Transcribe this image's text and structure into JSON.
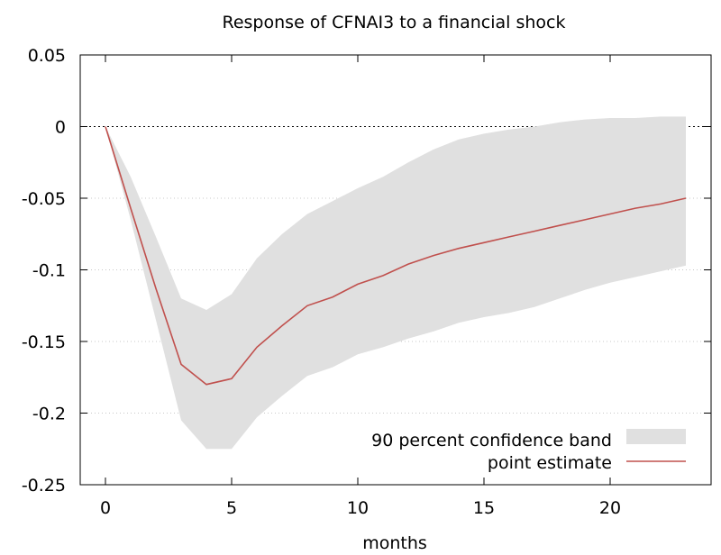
{
  "chart_data": {
    "type": "line",
    "title": "Response of CFNAI3 to a financial shock",
    "xlabel": "months",
    "ylabel": "",
    "xlim": [
      -1,
      24
    ],
    "ylim": [
      -0.25,
      0.05
    ],
    "x_ticks": [
      0,
      5,
      10,
      15,
      20
    ],
    "x_tick_labels": [
      "0",
      "5",
      "10",
      "15",
      "20"
    ],
    "y_ticks": [
      0.05,
      0,
      -0.05,
      -0.1,
      -0.15,
      -0.2,
      -0.25
    ],
    "y_tick_labels": [
      "0.05",
      "0",
      "-0.05",
      "-0.1",
      "-0.15",
      "-0.2",
      "-0.25"
    ],
    "grid": "horizontal dotted",
    "zero_line": true,
    "legend_position": "bottom-right",
    "x": [
      0,
      1,
      2,
      3,
      4,
      5,
      6,
      7,
      8,
      9,
      10,
      11,
      12,
      13,
      14,
      15,
      16,
      17,
      18,
      19,
      20,
      21,
      22,
      23
    ],
    "series": [
      {
        "name": "90 percent confidence band",
        "kind": "band",
        "color": "#e0e0e0",
        "lower": [
          0,
          -0.065,
          -0.135,
          -0.205,
          -0.225,
          -0.225,
          -0.203,
          -0.188,
          -0.174,
          -0.168,
          -0.159,
          -0.154,
          -0.148,
          -0.143,
          -0.137,
          -0.133,
          -0.13,
          -0.126,
          -0.12,
          -0.114,
          -0.109,
          -0.105,
          -0.101,
          -0.097
        ],
        "upper": [
          0,
          -0.035,
          -0.077,
          -0.12,
          -0.128,
          -0.117,
          -0.092,
          -0.075,
          -0.061,
          -0.052,
          -0.043,
          -0.035,
          -0.025,
          -0.016,
          -0.009,
          -0.005,
          -0.002,
          0.0,
          0.003,
          0.005,
          0.006,
          0.006,
          0.007,
          0.007
        ]
      },
      {
        "name": "point estimate",
        "kind": "line",
        "color": "#c0504d",
        "values": [
          0,
          -0.057,
          -0.113,
          -0.166,
          -0.18,
          -0.176,
          -0.154,
          -0.139,
          -0.125,
          -0.119,
          -0.11,
          -0.104,
          -0.096,
          -0.09,
          -0.085,
          -0.081,
          -0.077,
          -0.073,
          -0.069,
          -0.065,
          -0.061,
          -0.057,
          -0.054,
          -0.05
        ]
      }
    ]
  }
}
